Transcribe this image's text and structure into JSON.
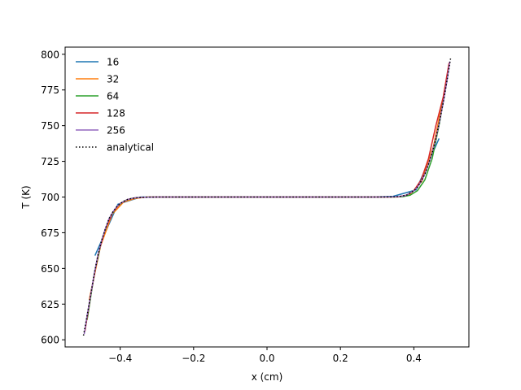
{
  "chart_data": {
    "type": "line",
    "title": "",
    "xlabel": "x (cm)",
    "ylabel": "T (K)",
    "xlim": [
      -0.55,
      0.55
    ],
    "ylim": [
      595,
      805
    ],
    "xticks": [
      -0.4,
      -0.2,
      0.0,
      0.2,
      0.4
    ],
    "xtick_labels": [
      "−0.4",
      "−0.2",
      "0.0",
      "0.2",
      "0.4"
    ],
    "yticks": [
      600,
      625,
      650,
      675,
      700,
      725,
      750,
      775,
      800
    ],
    "ytick_labels": [
      "600",
      "625",
      "650",
      "675",
      "700",
      "725",
      "750",
      "775",
      "800"
    ],
    "grid": false,
    "legend": "upper-left",
    "series": [
      {
        "name": "16",
        "color": "#1f77b4",
        "style": "solid",
        "x": [
          -0.46875,
          -0.40625,
          -0.34375,
          -0.28125,
          -0.21875,
          -0.15625,
          -0.09375,
          -0.03125,
          0.03125,
          0.09375,
          0.15625,
          0.21875,
          0.28125,
          0.34375,
          0.40625,
          0.46875
        ],
        "y": [
          659,
          695,
          700,
          700,
          700,
          700,
          700,
          700,
          700,
          700,
          700,
          700,
          700,
          700.5,
          705,
          741
        ]
      },
      {
        "name": "32",
        "color": "#ff7f0e",
        "style": "solid",
        "x": [
          -0.484375,
          -0.453125,
          -0.421875,
          -0.390625,
          -0.359375,
          -0.328125,
          -0.3,
          0.0,
          0.3,
          0.328125,
          0.359375,
          0.390625,
          0.421875,
          0.453125,
          0.484375
        ],
        "y": [
          628,
          666,
          688,
          696.5,
          699,
          700,
          700,
          700,
          700,
          700,
          700.1,
          702,
          711,
          735,
          775
        ]
      },
      {
        "name": "64",
        "color": "#2ca02c",
        "style": "solid",
        "x": [
          -0.49,
          -0.47,
          -0.45,
          -0.43,
          -0.41,
          -0.39,
          -0.37,
          -0.35,
          -0.3,
          0.0,
          0.3,
          0.35,
          0.37,
          0.39,
          0.41,
          0.43,
          0.45,
          0.47,
          0.49
        ],
        "y": [
          614,
          647,
          670,
          685,
          693,
          697.2,
          699,
          699.7,
          700,
          700,
          700,
          700.05,
          700.3,
          701.3,
          704.5,
          712,
          727,
          752,
          782
        ]
      },
      {
        "name": "128",
        "color": "#d62728",
        "style": "solid",
        "x": [
          -0.496,
          -0.48,
          -0.46,
          -0.44,
          -0.42,
          -0.4,
          -0.38,
          -0.36,
          -0.34,
          -0.3,
          0.0,
          0.3,
          0.34,
          0.36,
          0.38,
          0.4,
          0.42,
          0.44,
          0.46,
          0.48,
          0.496
        ],
        "y": [
          606,
          632,
          660,
          678,
          689.5,
          695.5,
          698.3,
          699.4,
          699.8,
          700,
          700,
          700,
          700.05,
          700.3,
          701.3,
          704.5,
          712,
          727,
          750,
          770,
          794
        ]
      },
      {
        "name": "256",
        "color": "#9467bd",
        "style": "solid",
        "x": [
          -0.498,
          -0.49,
          -0.48,
          -0.47,
          -0.46,
          -0.45,
          -0.44,
          -0.43,
          -0.42,
          -0.41,
          -0.4,
          -0.38,
          -0.36,
          -0.34,
          -0.3,
          0.0,
          0.3,
          0.34,
          0.36,
          0.38,
          0.4,
          0.41,
          0.42,
          0.43,
          0.44,
          0.45,
          0.46,
          0.47,
          0.48,
          0.49,
          0.498
        ],
        "y": [
          604,
          617,
          632,
          647,
          660,
          670,
          678,
          685,
          689.5,
          693,
          695.5,
          698.3,
          699.4,
          699.8,
          700,
          700,
          700,
          700.05,
          700.3,
          701.3,
          704.3,
          707,
          711,
          716,
          723,
          731,
          741,
          753,
          766,
          781,
          795
        ]
      },
      {
        "name": "analytical",
        "color": "#000000",
        "style": "dotted",
        "x": [
          -0.5,
          -0.49,
          -0.48,
          -0.47,
          -0.46,
          -0.45,
          -0.44,
          -0.43,
          -0.42,
          -0.41,
          -0.4,
          -0.38,
          -0.36,
          -0.34,
          -0.3,
          0.0,
          0.3,
          0.34,
          0.36,
          0.38,
          0.4,
          0.41,
          0.42,
          0.43,
          0.44,
          0.45,
          0.46,
          0.47,
          0.48,
          0.49,
          0.5
        ],
        "y": [
          603,
          617,
          632,
          647,
          660,
          670,
          678,
          685,
          689.5,
          693,
          695.5,
          698.3,
          699.4,
          699.8,
          700,
          700,
          700,
          700.05,
          700.3,
          701.3,
          704.3,
          707,
          711,
          716,
          723,
          731,
          741,
          753,
          766,
          781,
          797
        ]
      }
    ]
  }
}
